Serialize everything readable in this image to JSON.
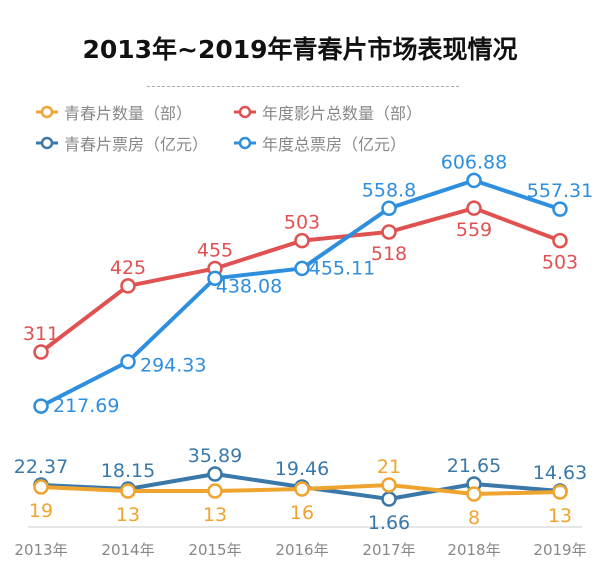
{
  "chart_data": {
    "type": "line",
    "title": "2013年~2019年青春片市场表现情况",
    "categories": [
      "2013年",
      "2014年",
      "2015年",
      "2016年",
      "2017年",
      "2018年",
      "2019年"
    ],
    "series": [
      {
        "name": "青春片数量（部）",
        "color": "#f0a430",
        "values": [
          19,
          13,
          13,
          16,
          21,
          8,
          13
        ]
      },
      {
        "name": "年度影片总数量（部）",
        "color": "#e05252",
        "values": [
          311,
          425,
          455,
          503,
          518,
          559,
          503
        ]
      },
      {
        "name": "青春片票房（亿元）",
        "color": "#3a78aa",
        "values": [
          22.37,
          18.15,
          35.89,
          19.46,
          1.66,
          21.65,
          14.63
        ]
      },
      {
        "name": "年度总票房（亿元）",
        "color": "#2f8fdf",
        "values": [
          217.69,
          294.33,
          438.08,
          455.11,
          558.8,
          606.88,
          557.31
        ]
      }
    ],
    "legend": "top-left",
    "grid": false
  }
}
